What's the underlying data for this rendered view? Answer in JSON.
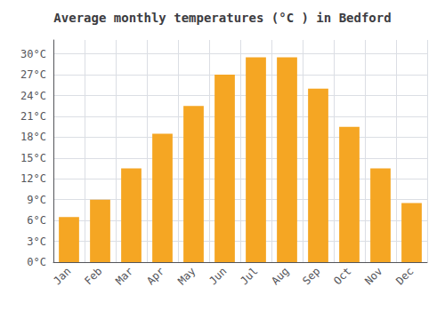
{
  "chart_data": {
    "type": "bar",
    "title": "Average monthly temperatures (°C ) in Bedford",
    "categories": [
      "Jan",
      "Feb",
      "Mar",
      "Apr",
      "May",
      "Jun",
      "Jul",
      "Aug",
      "Sep",
      "Oct",
      "Nov",
      "Dec"
    ],
    "values": [
      6.5,
      9.0,
      13.5,
      18.5,
      22.5,
      27.0,
      29.5,
      29.5,
      25.0,
      19.5,
      13.5,
      8.5
    ],
    "color": "#F5A623",
    "ylim": [
      0,
      32
    ],
    "yticks": [
      {
        "value": 0,
        "label": "0°C"
      },
      {
        "value": 3,
        "label": "3°C"
      },
      {
        "value": 6,
        "label": "6°C"
      },
      {
        "value": 9,
        "label": "9°C"
      },
      {
        "value": 12,
        "label": "12°C"
      },
      {
        "value": 15,
        "label": "15°C"
      },
      {
        "value": 18,
        "label": "18°C"
      },
      {
        "value": 21,
        "label": "21°C"
      },
      {
        "value": 24,
        "label": "24°C"
      },
      {
        "value": 27,
        "label": "27°C"
      },
      {
        "value": 30,
        "label": "30°C"
      }
    ],
    "grid": true
  }
}
